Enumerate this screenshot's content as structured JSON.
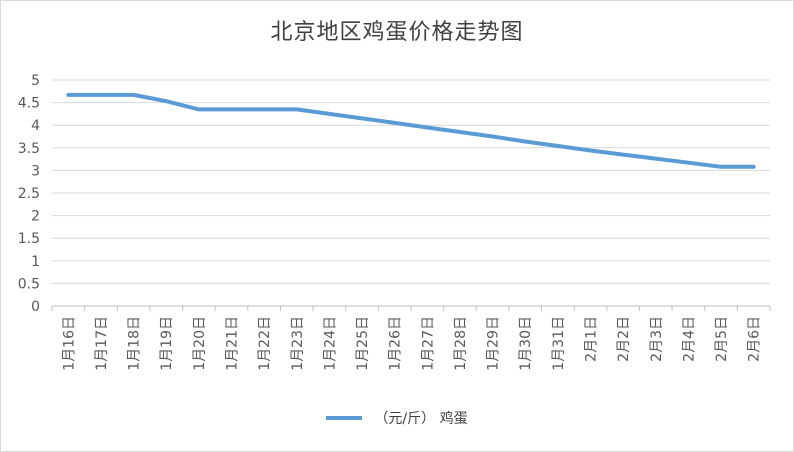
{
  "chart_data": {
    "type": "line",
    "title": "北京地区鸡蛋价格走势图",
    "categories": [
      "1月16日",
      "1月17日",
      "1月18日",
      "1月19日",
      "1月20日",
      "1月21日",
      "1月22日",
      "1月23日",
      "1月24日",
      "1月25日",
      "1月26日",
      "1月27日",
      "1月28日",
      "1月29日",
      "1月30日",
      "1月31日",
      "2月1日",
      "2月2日",
      "2月3日",
      "2月4日",
      "2月5日",
      "2月6日"
    ],
    "series": [
      {
        "name": "（元/斤） 鸡蛋",
        "values": [
          4.67,
          4.67,
          4.67,
          4.53,
          4.35,
          4.35,
          4.35,
          4.35,
          4.25,
          4.15,
          4.05,
          3.95,
          3.85,
          3.75,
          3.64,
          3.54,
          3.44,
          3.35,
          3.26,
          3.17,
          3.08,
          3.08
        ]
      }
    ],
    "y_ticks": [
      "0",
      "0.5",
      "1",
      "1.5",
      "2",
      "2.5",
      "3",
      "3.5",
      "4",
      "4.5",
      "5"
    ],
    "ylim": [
      0,
      5
    ],
    "xlabel": "",
    "ylabel": "",
    "grid": true,
    "legend_position": "bottom",
    "color": "#5b9bd5"
  }
}
